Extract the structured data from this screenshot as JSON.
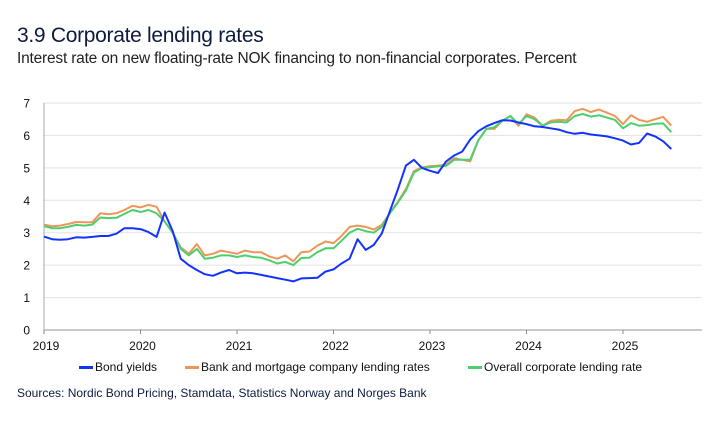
{
  "title": "3.9 Corporate lending rates",
  "subtitle": "Interest rate on new floating-rate NOK financing to non-financial corporates. Percent",
  "source": "Sources: Nordic Bond Pricing, Stamdata, Statistics Norway and Norges Bank",
  "chart_data": {
    "type": "line",
    "title": "3.9 Corporate lending rates",
    "ylabel": "Percent",
    "xlabel": "",
    "ylim": [
      0,
      7
    ],
    "yticks": [
      "0",
      "1",
      "2",
      "3",
      "4",
      "5",
      "6",
      "7"
    ],
    "xticks": [
      "2019",
      "2020",
      "2021",
      "2022",
      "2023",
      "2024",
      "2025"
    ],
    "grid": "horizontal",
    "legend": "bottom",
    "x": [
      "2019-01",
      "2019-02",
      "2019-03",
      "2019-04",
      "2019-05",
      "2019-06",
      "2019-07",
      "2019-08",
      "2019-09",
      "2019-10",
      "2019-11",
      "2019-12",
      "2020-01",
      "2020-02",
      "2020-03",
      "2020-04",
      "2020-05",
      "2020-06",
      "2020-07",
      "2020-08",
      "2020-09",
      "2020-10",
      "2020-11",
      "2020-12",
      "2021-01",
      "2021-02",
      "2021-03",
      "2021-04",
      "2021-05",
      "2021-06",
      "2021-07",
      "2021-08",
      "2021-09",
      "2021-10",
      "2021-11",
      "2021-12",
      "2022-01",
      "2022-02",
      "2022-03",
      "2022-04",
      "2022-05",
      "2022-06",
      "2022-07",
      "2022-08",
      "2022-09",
      "2022-10",
      "2022-11",
      "2022-12",
      "2023-01",
      "2023-02",
      "2023-03",
      "2023-04",
      "2023-05",
      "2023-06",
      "2023-07",
      "2023-08",
      "2023-09",
      "2023-10",
      "2023-11",
      "2023-12",
      "2024-01",
      "2024-02",
      "2024-03",
      "2024-04",
      "2024-05",
      "2024-06",
      "2024-07",
      "2024-08",
      "2024-09",
      "2024-10",
      "2024-11",
      "2024-12",
      "2025-01",
      "2025-02",
      "2025-03",
      "2025-04",
      "2025-05",
      "2025-06",
      "2025-07"
    ],
    "series": [
      {
        "name": "Bond yields",
        "color": "#1432ff",
        "values": [
          2.88,
          2.8,
          2.78,
          2.8,
          2.86,
          2.85,
          2.87,
          2.9,
          2.9,
          2.97,
          3.14,
          3.14,
          3.11,
          3.02,
          2.87,
          3.62,
          3.05,
          2.2,
          2.0,
          1.85,
          1.72,
          1.67,
          1.77,
          1.85,
          1.75,
          1.77,
          1.75,
          1.7,
          1.65,
          1.6,
          1.55,
          1.5,
          1.59,
          1.6,
          1.61,
          1.8,
          1.87,
          2.05,
          2.2,
          2.8,
          2.47,
          2.62,
          2.98,
          3.66,
          4.33,
          5.07,
          5.25,
          5.0,
          4.91,
          4.84,
          5.2,
          5.38,
          5.5,
          5.87,
          6.13,
          6.28,
          6.38,
          6.47,
          6.46,
          6.4,
          6.35,
          6.28,
          6.26,
          6.22,
          6.18,
          6.1,
          6.05,
          6.08,
          6.03,
          6.0,
          5.97,
          5.91,
          5.84,
          5.72,
          5.77,
          6.06,
          5.97,
          5.82,
          5.58
        ]
      },
      {
        "name": "Bank and mortgage company lending rates",
        "color": "#f0955a",
        "values": [
          3.25,
          3.2,
          3.22,
          3.27,
          3.33,
          3.32,
          3.32,
          3.6,
          3.57,
          3.6,
          3.7,
          3.83,
          3.78,
          3.86,
          3.8,
          3.35,
          3.0,
          2.55,
          2.35,
          2.65,
          2.3,
          2.35,
          2.45,
          2.4,
          2.35,
          2.45,
          2.4,
          2.4,
          2.27,
          2.2,
          2.3,
          2.12,
          2.4,
          2.42,
          2.6,
          2.73,
          2.68,
          2.9,
          3.18,
          3.22,
          3.18,
          3.1,
          3.24,
          3.6,
          3.95,
          4.35,
          4.9,
          5.02,
          5.05,
          5.07,
          5.1,
          5.3,
          5.25,
          5.2,
          5.85,
          6.2,
          6.2,
          6.45,
          6.6,
          6.3,
          6.65,
          6.55,
          6.3,
          6.45,
          6.48,
          6.47,
          6.75,
          6.82,
          6.72,
          6.8,
          6.7,
          6.6,
          6.35,
          6.62,
          6.48,
          6.42,
          6.5,
          6.57,
          6.3
        ]
      },
      {
        "name": "Overall corporate lending rate",
        "color": "#4dcf6e",
        "values": [
          3.2,
          3.14,
          3.14,
          3.18,
          3.24,
          3.22,
          3.25,
          3.47,
          3.45,
          3.46,
          3.58,
          3.7,
          3.64,
          3.7,
          3.6,
          3.35,
          3.0,
          2.5,
          2.3,
          2.5,
          2.2,
          2.23,
          2.3,
          2.3,
          2.25,
          2.3,
          2.25,
          2.23,
          2.15,
          2.05,
          2.1,
          2.0,
          2.22,
          2.23,
          2.4,
          2.52,
          2.52,
          2.75,
          3.0,
          3.12,
          3.05,
          3.0,
          3.18,
          3.6,
          3.93,
          4.3,
          4.85,
          5.0,
          5.02,
          5.05,
          5.06,
          5.25,
          5.25,
          5.25,
          5.85,
          6.2,
          6.25,
          6.45,
          6.6,
          6.35,
          6.6,
          6.5,
          6.3,
          6.4,
          6.42,
          6.4,
          6.6,
          6.66,
          6.58,
          6.62,
          6.55,
          6.48,
          6.22,
          6.38,
          6.3,
          6.32,
          6.36,
          6.37,
          6.1
        ]
      }
    ]
  }
}
